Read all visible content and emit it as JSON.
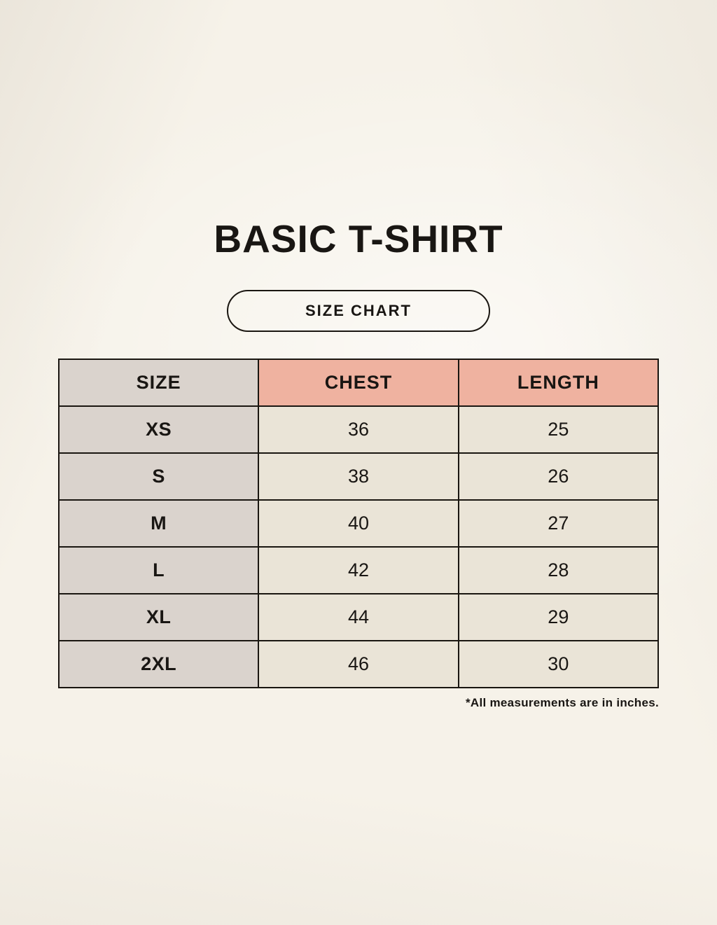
{
  "chart_data": {
    "type": "table",
    "title": "BASIC T-SHIRT",
    "subtitle": "SIZE CHART",
    "columns": [
      "SIZE",
      "CHEST",
      "LENGTH"
    ],
    "rows": [
      [
        "XS",
        36,
        25
      ],
      [
        "S",
        38,
        26
      ],
      [
        "M",
        40,
        27
      ],
      [
        "L",
        42,
        28
      ],
      [
        "XL",
        44,
        29
      ],
      [
        "2XL",
        46,
        30
      ]
    ],
    "note": "*All measurements are in inches."
  },
  "colors": {
    "background": "#f6f2e9",
    "header_size_bg": "#dad3cd",
    "header_measure_bg": "#efb2a0",
    "size_cell_bg": "#dad3cd",
    "value_cell_bg": "#eae4d7",
    "border": "#1a1611",
    "text": "#191613"
  }
}
